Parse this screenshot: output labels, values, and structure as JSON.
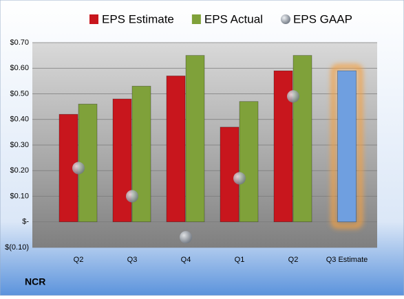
{
  "chart_data": {
    "type": "bar",
    "company": "NCR",
    "categories": [
      "Q2",
      "Q3",
      "Q4",
      "Q1",
      "Q2",
      "Q3 Estimate"
    ],
    "series": [
      {
        "name": "EPS Estimate",
        "color": "#c8161d",
        "values": [
          0.42,
          0.48,
          0.57,
          0.37,
          0.59,
          0.59
        ],
        "point_colors": [
          "#c8161d",
          "#c8161d",
          "#c8161d",
          "#c8161d",
          "#c8161d",
          "#6f9fe0"
        ]
      },
      {
        "name": "EPS Actual",
        "color": "#7fa13a",
        "values": [
          0.46,
          0.53,
          0.65,
          0.47,
          0.65,
          null
        ]
      },
      {
        "name": "EPS GAAP",
        "color": "#9aa3ad",
        "marker": "circle",
        "values": [
          0.21,
          0.1,
          -0.06,
          0.17,
          0.49,
          null
        ]
      }
    ],
    "ylim": [
      -0.1,
      0.7
    ],
    "yticks": [
      {
        "value": -0.1,
        "label": "$(0.10)"
      },
      {
        "value": 0,
        "label": "$-"
      },
      {
        "value": 0.1,
        "label": "$0.10"
      },
      {
        "value": 0.2,
        "label": "$0.20"
      },
      {
        "value": 0.3,
        "label": "$0.30"
      },
      {
        "value": 0.4,
        "label": "$0.40"
      },
      {
        "value": 0.5,
        "label": "$0.50"
      },
      {
        "value": 0.6,
        "label": "$0.60"
      },
      {
        "value": 0.7,
        "label": "$0.70"
      }
    ],
    "grid": true
  }
}
